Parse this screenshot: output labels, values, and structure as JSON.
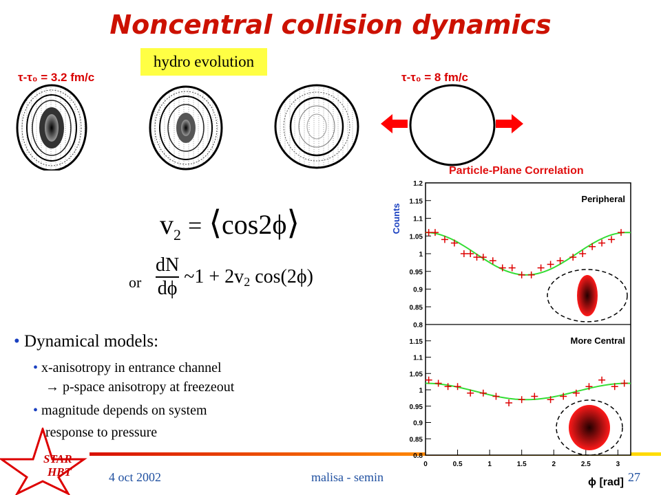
{
  "slide": {
    "title": "Noncentral collision dynamics",
    "hydro_label": "hydro evolution",
    "tau_start": "τ-τ₀ = 3.2 fm/c",
    "tau_end": "τ-τ₀ = 8 fm/c",
    "or_label": "or",
    "equations": {
      "v2_lhs": "v",
      "v2_sub": "2",
      "v2_rhs": "cos2ϕ",
      "dn_num": "dN",
      "dn_den": "dϕ",
      "dn_rhs": "~1 + 2v",
      "dn_sub": "2",
      "dn_cos": "cos(2ϕ)"
    },
    "bullets": {
      "main": "Dynamical  models:",
      "sub1_line1": "x-anisotropy in entrance channel",
      "sub1_line2": "→  p-space anisotropy at freezeout",
      "sub2_line1": "magnitude depends on system",
      "sub2_line2": "response to pressure"
    },
    "star_line1": "STAR",
    "star_line2": "HBT",
    "footer": {
      "date": "4 oct 2002",
      "author": "malisa - semin",
      "page": "27"
    },
    "colors": {
      "title": "#cc1100",
      "highlight": "#ffff44",
      "arrow": "#ff0000",
      "fit_curve": "#33dd33",
      "data_points": "#dd0000"
    }
  },
  "chart_data": {
    "type": "scatter",
    "title": "Particle-Plane Correlation",
    "xlabel": "ϕ [rad]",
    "ylabel": "Counts",
    "xlim": [
      0,
      3.2
    ],
    "x_ticks": [
      "0",
      "0.5",
      "1",
      "1.5",
      "2",
      "2.5",
      "3"
    ],
    "panels": [
      {
        "label": "Peripheral",
        "ylim": [
          0.8,
          1.2
        ],
        "y_ticks": [
          "0.8",
          "0.85",
          "0.9",
          "0.95",
          "1",
          "1.05",
          "1.1",
          "1.15",
          "1.2"
        ],
        "x": [
          0.05,
          0.15,
          0.3,
          0.45,
          0.6,
          0.7,
          0.8,
          0.9,
          1.05,
          1.2,
          1.35,
          1.5,
          1.65,
          1.8,
          1.95,
          2.1,
          2.3,
          2.45,
          2.6,
          2.75,
          2.9,
          3.05
        ],
        "values": [
          1.06,
          1.06,
          1.04,
          1.03,
          1.0,
          1.0,
          0.99,
          0.99,
          0.98,
          0.96,
          0.96,
          0.94,
          0.94,
          0.96,
          0.97,
          0.98,
          0.99,
          1.0,
          1.02,
          1.03,
          1.04,
          1.06
        ],
        "fit": {
          "v0": 1.0,
          "amp": 0.06
        }
      },
      {
        "label": "More Central",
        "ylim": [
          0.8,
          1.2
        ],
        "y_ticks": [
          "0.8",
          "0.85",
          "0.9",
          "0.95",
          "1",
          "1.05",
          "1.1",
          "1.15"
        ],
        "x": [
          0.05,
          0.2,
          0.35,
          0.5,
          0.7,
          0.9,
          1.1,
          1.3,
          1.5,
          1.7,
          1.95,
          2.15,
          2.35,
          2.55,
          2.75,
          2.95,
          3.1
        ],
        "values": [
          1.03,
          1.02,
          1.01,
          1.01,
          0.99,
          0.99,
          0.98,
          0.96,
          0.97,
          0.98,
          0.97,
          0.98,
          0.99,
          1.01,
          1.03,
          1.01,
          1.02
        ],
        "fit": {
          "v0": 0.995,
          "amp": 0.025
        }
      }
    ]
  }
}
